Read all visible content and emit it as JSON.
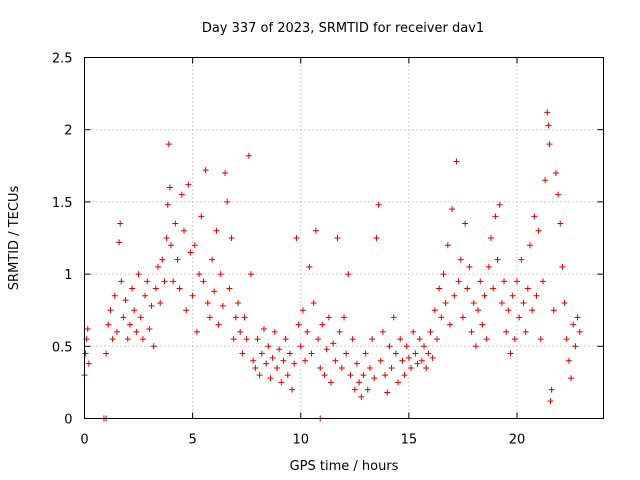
{
  "chart_data": {
    "type": "scatter",
    "title": "Day 337 of 2023, SRMTID for receiver dav1",
    "xlabel": "GPS time / hours",
    "ylabel": "SRMTID / TECUs",
    "xlim": [
      0,
      24
    ],
    "ylim": [
      0,
      2.5
    ],
    "xticks": [
      0,
      5,
      10,
      15,
      20
    ],
    "xtick_labels": [
      "0",
      "5",
      "10",
      "15",
      "20"
    ],
    "yticks": [
      0,
      0.5,
      1,
      1.5,
      2,
      2.5
    ],
    "ytick_labels": [
      "0",
      "0.5",
      "1",
      "1.5",
      "2",
      "2.5"
    ],
    "grid": true,
    "marker": "+",
    "series": [
      {
        "name": "SRMTID",
        "color": "#e00000",
        "points": [
          [
            0.0,
            0.3
          ],
          [
            0.05,
            0.45
          ],
          [
            0.1,
            0.55
          ],
          [
            0.15,
            0.62
          ],
          [
            0.2,
            0.38
          ],
          [
            0.9,
            0.0
          ],
          [
            1.0,
            0.0
          ],
          [
            10.9,
            0.0
          ],
          [
            1.0,
            0.45
          ],
          [
            1.1,
            0.65
          ],
          [
            1.2,
            0.75
          ],
          [
            1.3,
            0.55
          ],
          [
            1.4,
            0.85
          ],
          [
            1.5,
            0.6
          ],
          [
            1.6,
            1.22
          ],
          [
            1.65,
            1.35
          ],
          [
            1.7,
            0.95
          ],
          [
            1.8,
            0.7
          ],
          [
            1.9,
            0.82
          ],
          [
            2.0,
            0.55
          ],
          [
            2.1,
            0.65
          ],
          [
            2.2,
            0.9
          ],
          [
            2.3,
            0.75
          ],
          [
            2.4,
            0.6
          ],
          [
            2.5,
            1.0
          ],
          [
            2.6,
            0.7
          ],
          [
            2.7,
            0.55
          ],
          [
            2.8,
            0.85
          ],
          [
            2.9,
            0.95
          ],
          [
            3.0,
            0.62
          ],
          [
            3.1,
            0.78
          ],
          [
            3.2,
            0.5
          ],
          [
            3.3,
            0.9
          ],
          [
            3.4,
            1.05
          ],
          [
            3.5,
            0.8
          ],
          [
            3.6,
            1.1
          ],
          [
            3.7,
            0.95
          ],
          [
            3.8,
            1.25
          ],
          [
            3.85,
            1.48
          ],
          [
            3.9,
            1.9
          ],
          [
            3.95,
            1.6
          ],
          [
            4.0,
            1.2
          ],
          [
            4.1,
            0.95
          ],
          [
            4.2,
            1.35
          ],
          [
            4.3,
            1.1
          ],
          [
            4.4,
            0.9
          ],
          [
            4.5,
            1.55
          ],
          [
            4.6,
            1.3
          ],
          [
            4.7,
            0.75
          ],
          [
            4.8,
            1.62
          ],
          [
            4.9,
            1.15
          ],
          [
            5.0,
            0.85
          ],
          [
            5.1,
            1.2
          ],
          [
            5.2,
            0.6
          ],
          [
            5.3,
            1.0
          ],
          [
            5.4,
            1.4
          ],
          [
            5.5,
            0.95
          ],
          [
            5.6,
            1.72
          ],
          [
            5.7,
            0.8
          ],
          [
            5.8,
            0.7
          ],
          [
            5.9,
            1.1
          ],
          [
            6.0,
            0.88
          ],
          [
            6.1,
            1.3
          ],
          [
            6.2,
            0.65
          ],
          [
            6.3,
            1.0
          ],
          [
            6.4,
            0.78
          ],
          [
            6.5,
            1.7
          ],
          [
            6.6,
            1.5
          ],
          [
            6.7,
            0.9
          ],
          [
            6.8,
            1.25
          ],
          [
            6.9,
            0.55
          ],
          [
            7.0,
            0.7
          ],
          [
            7.1,
            0.8
          ],
          [
            7.2,
            0.6
          ],
          [
            7.3,
            0.45
          ],
          [
            7.4,
            0.7
          ],
          [
            7.5,
            0.55
          ],
          [
            7.6,
            1.82
          ],
          [
            7.7,
            1.0
          ],
          [
            7.8,
            0.4
          ],
          [
            7.9,
            0.35
          ],
          [
            8.0,
            0.55
          ],
          [
            8.1,
            0.3
          ],
          [
            8.2,
            0.45
          ],
          [
            8.3,
            0.62
          ],
          [
            8.4,
            0.38
          ],
          [
            8.5,
            0.5
          ],
          [
            8.6,
            0.28
          ],
          [
            8.7,
            0.42
          ],
          [
            8.8,
            0.6
          ],
          [
            8.9,
            0.35
          ],
          [
            9.0,
            0.48
          ],
          [
            9.1,
            0.25
          ],
          [
            9.2,
            0.4
          ],
          [
            9.3,
            0.55
          ],
          [
            9.4,
            0.3
          ],
          [
            9.5,
            0.45
          ],
          [
            9.6,
            0.2
          ],
          [
            9.7,
            0.38
          ],
          [
            9.8,
            1.25
          ],
          [
            9.9,
            0.65
          ],
          [
            10.0,
            0.5
          ],
          [
            10.1,
            0.75
          ],
          [
            10.2,
            0.4
          ],
          [
            10.3,
            0.6
          ],
          [
            10.4,
            1.05
          ],
          [
            10.5,
            0.45
          ],
          [
            10.6,
            0.8
          ],
          [
            10.7,
            1.3
          ],
          [
            10.8,
            0.55
          ],
          [
            10.9,
            0.35
          ],
          [
            11.0,
            0.65
          ],
          [
            11.1,
            0.3
          ],
          [
            11.2,
            0.48
          ],
          [
            11.3,
            0.7
          ],
          [
            11.4,
            0.25
          ],
          [
            11.5,
            0.52
          ],
          [
            11.6,
            0.4
          ],
          [
            11.7,
            1.25
          ],
          [
            11.8,
            0.6
          ],
          [
            11.9,
            0.35
          ],
          [
            12.0,
            0.7
          ],
          [
            12.1,
            0.45
          ],
          [
            12.2,
            1.0
          ],
          [
            12.3,
            0.3
          ],
          [
            12.4,
            0.55
          ],
          [
            12.5,
            0.2
          ],
          [
            12.6,
            0.38
          ],
          [
            12.7,
            0.25
          ],
          [
            12.8,
            0.15
          ],
          [
            12.9,
            0.3
          ],
          [
            13.0,
            0.45
          ],
          [
            13.1,
            0.2
          ],
          [
            13.2,
            0.35
          ],
          [
            13.3,
            0.55
          ],
          [
            13.4,
            0.28
          ],
          [
            13.5,
            1.25
          ],
          [
            13.6,
            1.48
          ],
          [
            13.7,
            0.4
          ],
          [
            13.8,
            0.6
          ],
          [
            13.9,
            0.3
          ],
          [
            14.0,
            0.18
          ],
          [
            14.1,
            0.5
          ],
          [
            14.2,
            0.35
          ],
          [
            14.3,
            0.7
          ],
          [
            14.4,
            0.45
          ],
          [
            14.5,
            0.25
          ],
          [
            14.6,
            0.55
          ],
          [
            14.7,
            0.4
          ],
          [
            14.8,
            0.3
          ],
          [
            14.9,
            0.5
          ],
          [
            15.0,
            0.42
          ],
          [
            15.1,
            0.35
          ],
          [
            15.2,
            0.6
          ],
          [
            15.3,
            0.45
          ],
          [
            15.4,
            0.38
          ],
          [
            15.5,
            0.55
          ],
          [
            15.6,
            0.4
          ],
          [
            15.7,
            0.5
          ],
          [
            15.8,
            0.35
          ],
          [
            15.9,
            0.45
          ],
          [
            16.0,
            0.6
          ],
          [
            16.1,
            0.42
          ],
          [
            16.2,
            0.75
          ],
          [
            16.3,
            0.55
          ],
          [
            16.4,
            0.9
          ],
          [
            16.5,
            0.7
          ],
          [
            16.6,
            1.0
          ],
          [
            16.7,
            0.8
          ],
          [
            16.8,
            1.2
          ],
          [
            16.9,
            0.65
          ],
          [
            17.0,
            1.45
          ],
          [
            17.1,
            0.85
          ],
          [
            17.2,
            1.78
          ],
          [
            17.3,
            0.95
          ],
          [
            17.4,
            1.1
          ],
          [
            17.5,
            0.7
          ],
          [
            17.6,
            1.35
          ],
          [
            17.7,
            0.9
          ],
          [
            17.8,
            1.05
          ],
          [
            17.9,
            0.6
          ],
          [
            18.0,
            0.8
          ],
          [
            18.1,
            0.5
          ],
          [
            18.2,
            0.75
          ],
          [
            18.3,
            0.95
          ],
          [
            18.4,
            0.65
          ],
          [
            18.5,
            0.85
          ],
          [
            18.6,
            0.55
          ],
          [
            18.7,
            1.05
          ],
          [
            18.8,
            1.25
          ],
          [
            18.9,
            0.9
          ],
          [
            19.0,
            1.4
          ],
          [
            19.1,
            1.1
          ],
          [
            19.2,
            1.48
          ],
          [
            19.3,
            0.8
          ],
          [
            19.4,
            0.95
          ],
          [
            19.5,
            0.6
          ],
          [
            19.6,
            0.75
          ],
          [
            19.7,
            0.45
          ],
          [
            19.8,
            0.85
          ],
          [
            19.9,
            0.55
          ],
          [
            20.0,
            0.95
          ],
          [
            20.1,
            0.7
          ],
          [
            20.2,
            1.1
          ],
          [
            20.3,
            0.8
          ],
          [
            20.4,
            0.6
          ],
          [
            20.5,
            0.9
          ],
          [
            20.6,
            1.2
          ],
          [
            20.7,
            0.75
          ],
          [
            20.8,
            1.4
          ],
          [
            20.9,
            0.85
          ],
          [
            21.0,
            1.3
          ],
          [
            21.1,
            0.55
          ],
          [
            21.2,
            0.95
          ],
          [
            21.3,
            1.65
          ],
          [
            21.4,
            2.12
          ],
          [
            21.45,
            2.03
          ],
          [
            21.5,
            1.9
          ],
          [
            21.55,
            0.12
          ],
          [
            21.6,
            0.2
          ],
          [
            21.7,
            0.75
          ],
          [
            21.8,
            1.7
          ],
          [
            21.9,
            1.55
          ],
          [
            22.0,
            1.35
          ],
          [
            22.1,
            1.05
          ],
          [
            22.2,
            0.8
          ],
          [
            22.3,
            0.55
          ],
          [
            22.4,
            0.4
          ],
          [
            22.5,
            0.28
          ],
          [
            22.6,
            0.65
          ],
          [
            22.7,
            0.5
          ],
          [
            22.8,
            0.7
          ],
          [
            22.9,
            0.6
          ]
        ]
      }
    ]
  }
}
